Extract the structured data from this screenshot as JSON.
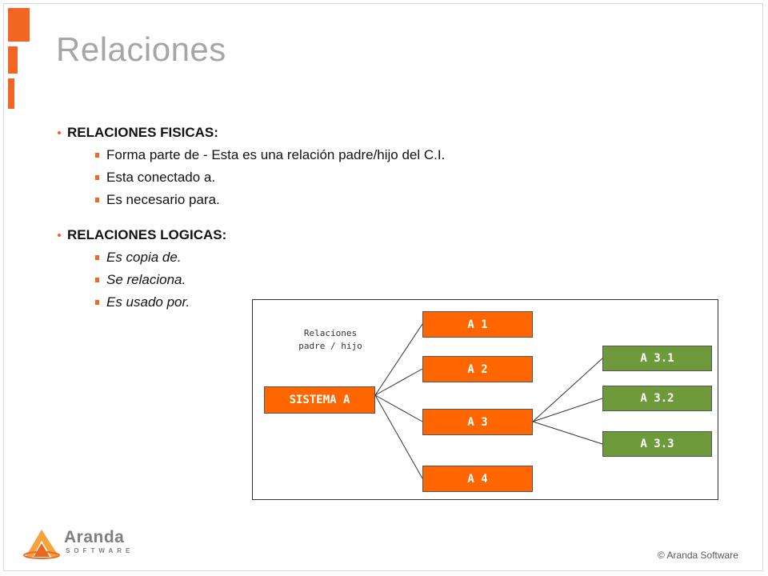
{
  "slide": {
    "title": "Relaciones",
    "accent_color": "#f26522"
  },
  "content": {
    "sections": [
      {
        "heading": "RELACIONES FISICAS:",
        "items": [
          "Forma parte de - Esta es una relación padre/hijo del C.I.",
          "Esta conectado a.",
          "Es necesario para."
        ]
      },
      {
        "heading": "RELACIONES LOGICAS:",
        "items": [
          "Es copia de.",
          "Se relaciona.",
          "Es usado por."
        ]
      }
    ]
  },
  "diagram": {
    "note_line1": "Relaciones",
    "note_line2": "padre / hijo",
    "root": "SISTEMA A",
    "children": [
      "A 1",
      "A 2",
      "A 3",
      "A 4"
    ],
    "grandchildren": [
      "A 3.1",
      "A 3.2",
      "A 3.3"
    ],
    "colors": {
      "child": "#ff6600",
      "grandchild": "#6f9a3c"
    }
  },
  "footer": {
    "logo_name": "Aranda",
    "logo_sub": "SOFTWARE",
    "copyright": "© Aranda Software"
  }
}
